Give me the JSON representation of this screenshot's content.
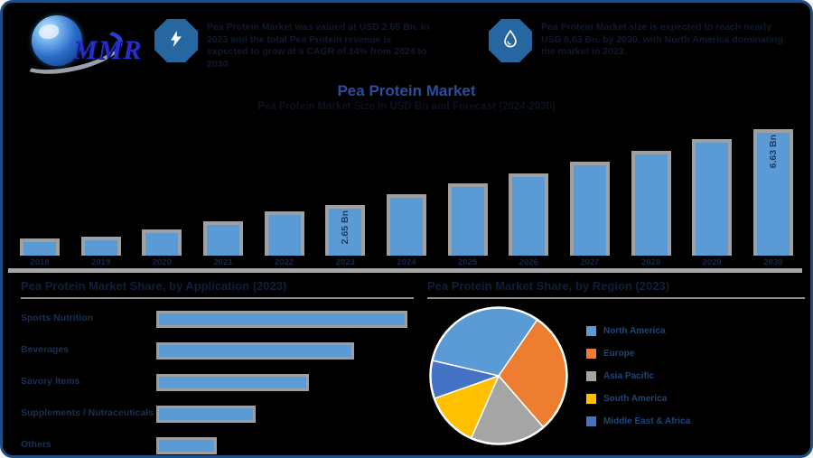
{
  "brand": {
    "logo_text": "MMR"
  },
  "header": {
    "badge1": {
      "icon": "lightning-bolt",
      "text": "Pea Protein Market was valued at USD 2.65 Bn. in 2023 and the total Pea Protein revenue is expected to grow at a CAGR of 14% from 2024 to 2030."
    },
    "badge2": {
      "icon": "water-drop",
      "text": "Pea Protein Market size is expected to reach nearly USD 6.63 Bn. by 2030, with North America dominating the market in 2023."
    }
  },
  "title": "Pea Protein Market",
  "subtitle": "Pea Protein Market Size in USD Bn and Forecast (2024-2030)",
  "sections": {
    "left_heading": "Pea Protein Market Share, by Application (2023)",
    "right_heading": "Pea Protein Market Share, by Region (2023)"
  },
  "chart_data": [
    {
      "type": "bar",
      "title": "Pea Protein Market Size (USD Bn)",
      "categories": [
        "2018",
        "2019",
        "2020",
        "2021",
        "2022",
        "2023",
        "2024",
        "2025",
        "2026",
        "2027",
        "2028",
        "2029",
        "2030"
      ],
      "values": [
        0.9,
        1.0,
        1.35,
        1.8,
        2.3,
        2.65,
        3.2,
        3.8,
        4.3,
        4.9,
        5.5,
        6.1,
        6.63
      ],
      "unit": "USD Bn",
      "ylim": [
        0,
        7
      ],
      "grid": false,
      "bar_color": "#5b9bd5",
      "bar_frame_color": "#a0a0a0",
      "data_labels": {
        "2023": "2.65 Bn",
        "2030": "6.63 Bn"
      }
    },
    {
      "type": "bar",
      "orientation": "horizontal",
      "title": "Pea Protein Market Share, by Application (2023)",
      "categories": [
        "Sports Nutrition",
        "Beverages",
        "Savory Items",
        "Supplements / Nutraceuticals",
        "Others"
      ],
      "values": [
        33,
        26,
        20,
        13,
        8
      ],
      "unit": "%",
      "xlim": [
        0,
        35
      ],
      "bar_color": "#5b9bd5"
    },
    {
      "type": "pie",
      "title": "Pea Protein Market Share, by Region (2023)",
      "categories": [
        "North America",
        "Europe",
        "Asia Pacific",
        "South America",
        "Middle East & Africa"
      ],
      "values": [
        31,
        29,
        18,
        13,
        9
      ],
      "unit": "%",
      "colors": [
        "#5b9bd5",
        "#ed7d31",
        "#a5a5a5",
        "#ffc000",
        "#4472c4"
      ],
      "legend_position": "right",
      "start_angle_deg": 283
    }
  ],
  "colors": {
    "background": "#000000",
    "frame_border": "#1d4e85",
    "title_blue": "#2b4da0",
    "bar_blue": "#5b9bd5",
    "bar_frame_gray": "#a0a0a0",
    "axis_gray": "#a6a6a6",
    "badge_blue": "#2767a1",
    "legend_text": "#1d4679"
  }
}
